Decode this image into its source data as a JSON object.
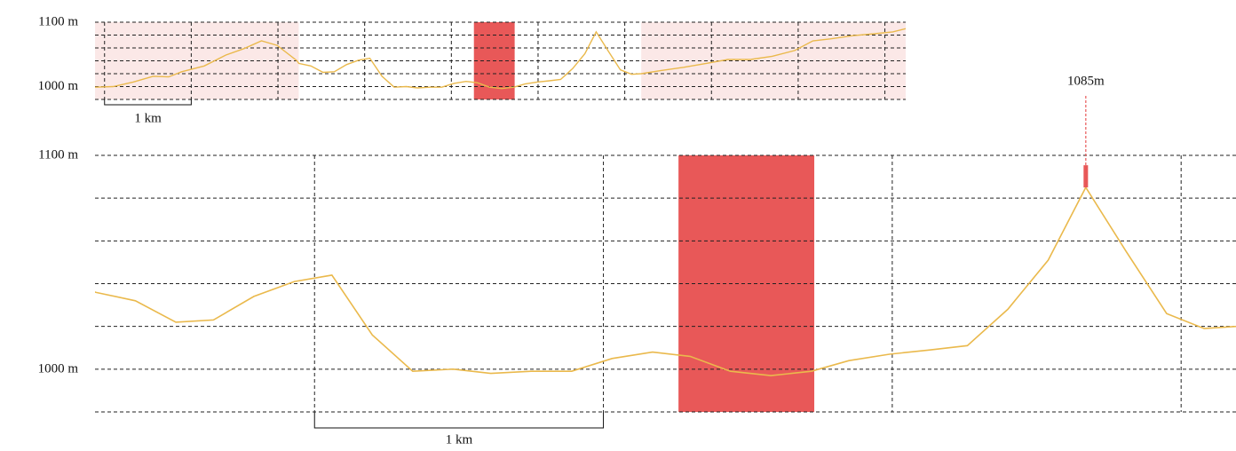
{
  "chart_data": {
    "type": "line",
    "color": "#eab94c",
    "x": [
      -0.11,
      0.1,
      0.33,
      0.56,
      0.74,
      0.89,
      1.15,
      1.4,
      1.61,
      1.81,
      1.99,
      2.22,
      2.24,
      2.38,
      2.52,
      2.65,
      2.79,
      2.93,
      3.06,
      3.2,
      3.34,
      3.48,
      3.61,
      3.75,
      3.89,
      4.03,
      4.17,
      4.3,
      4.44,
      4.58,
      4.72,
      4.85,
      4.99,
      5.13,
      5.26,
      5.4,
      5.54,
      5.67,
      5.81,
      5.95,
      6.08,
      6.19,
      6.42,
      6.68,
      6.94,
      7.19,
      7.45,
      7.7,
      7.96,
      8.17,
      8.37,
      8.63,
      8.88,
      9.09,
      9.24
    ],
    "values": [
      999,
      1000,
      1007,
      1016,
      1015,
      1023,
      1032,
      1049,
      1059,
      1071,
      1064,
      1040,
      1036,
      1032,
      1022,
      1023,
      1034,
      1041,
      1044,
      1016,
      999,
      1000,
      998,
      999,
      999,
      1005,
      1008,
      1006,
      999,
      997,
      999,
      1004,
      1007,
      1009,
      1011,
      1028,
      1051,
      1085,
      1055,
      1026,
      1019,
      1020,
      1025,
      1030,
      1036,
      1042,
      1042,
      1047,
      1056,
      1071,
      1074,
      1079,
      1082,
      1085,
      1090
    ],
    "highlight": {
      "range": [
        4.26,
        4.73
      ],
      "color": "#e85858"
    },
    "peak": {
      "x": 5.67,
      "value": 1085,
      "label": "1085m",
      "color": "#e85858"
    },
    "outside_color": "#fbe8e7",
    "overview": {
      "xlim": [
        -0.11,
        9.24
      ],
      "ylim": [
        980,
        1100
      ],
      "xgrid": [
        0,
        1,
        2,
        3,
        4,
        5,
        6,
        7,
        8,
        9
      ],
      "ygrid": [
        980,
        1000,
        1020,
        1040,
        1060,
        1080,
        1100
      ],
      "yticks": [
        {
          "value": 1000,
          "label": "1000 m"
        },
        {
          "value": 1100,
          "label": "1100 m"
        }
      ],
      "scalebar": {
        "length": 1,
        "label": "1 km"
      }
    },
    "detail": {
      "xlim": [
        2.24,
        6.19
      ],
      "ylim": [
        980,
        1100
      ],
      "xgrid": [
        3,
        4,
        5,
        6
      ],
      "ygrid": [
        980,
        1000,
        1020,
        1040,
        1060,
        1080,
        1100
      ],
      "yticks": [
        {
          "value": 1000,
          "label": "1000 m"
        },
        {
          "value": 1100,
          "label": "1100 m"
        }
      ],
      "scalebar": {
        "length": 1,
        "label": "1 km"
      }
    }
  }
}
